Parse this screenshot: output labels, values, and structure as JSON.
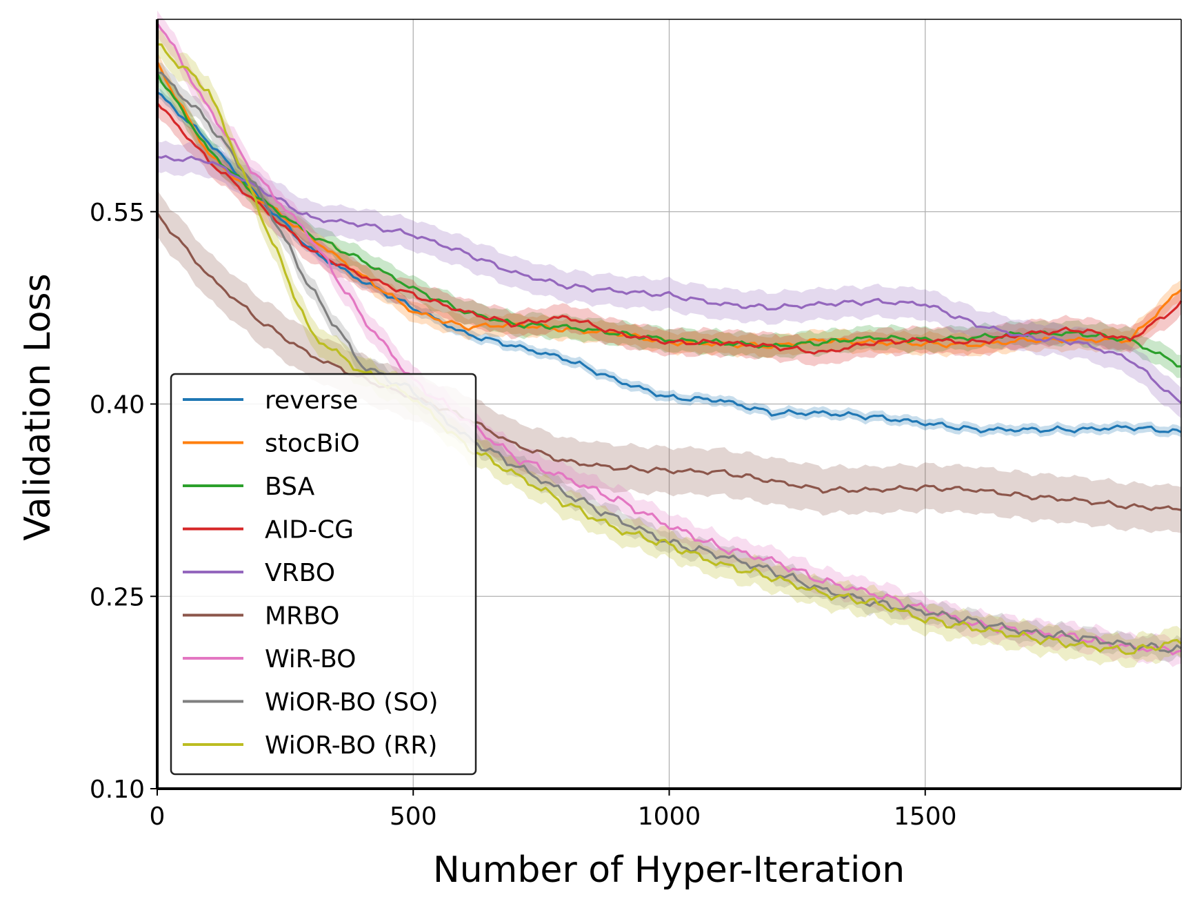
{
  "chart_data": {
    "type": "line",
    "title": "",
    "xlabel": "Number of Hyper-Iteration",
    "ylabel": "Validation Loss",
    "xlim": [
      0,
      2000
    ],
    "ylim": [
      0.1,
      0.7
    ],
    "xticks": [
      0,
      500,
      1000,
      1500
    ],
    "xtick_labels": [
      "0",
      "500",
      "1000",
      "1500"
    ],
    "yticks": [
      0.1,
      0.25,
      0.4,
      0.55
    ],
    "ytick_labels": [
      "0.10",
      "0.25",
      "0.40",
      "0.55"
    ],
    "grid": true,
    "legend_position": "lower-left",
    "x": [
      0,
      100,
      200,
      300,
      400,
      500,
      600,
      700,
      800,
      900,
      1000,
      1100,
      1200,
      1300,
      1400,
      1500,
      1600,
      1700,
      1800,
      1900,
      2000
    ],
    "series": [
      {
        "name": "reverse",
        "color": "#1f77b4",
        "band": 0.004,
        "values": [
          0.643,
          0.605,
          0.56,
          0.52,
          0.496,
          0.475,
          0.455,
          0.445,
          0.435,
          0.418,
          0.405,
          0.403,
          0.393,
          0.393,
          0.39,
          0.385,
          0.38,
          0.38,
          0.38,
          0.382,
          0.378
        ]
      },
      {
        "name": "stocBiO",
        "color": "#ff7f0e",
        "band": 0.008,
        "values": [
          0.665,
          0.595,
          0.56,
          0.53,
          0.5,
          0.472,
          0.46,
          0.462,
          0.458,
          0.455,
          0.448,
          0.447,
          0.445,
          0.45,
          0.448,
          0.447,
          0.446,
          0.45,
          0.45,
          0.45,
          0.49
        ]
      },
      {
        "name": "BSA",
        "color": "#2ca02c",
        "band": 0.009,
        "values": [
          0.658,
          0.598,
          0.56,
          0.532,
          0.512,
          0.49,
          0.472,
          0.462,
          0.46,
          0.455,
          0.45,
          0.448,
          0.445,
          0.448,
          0.452,
          0.45,
          0.452,
          0.455,
          0.455,
          0.45,
          0.43
        ]
      },
      {
        "name": "AID-CG",
        "color": "#d62728",
        "band": 0.01,
        "values": [
          0.635,
          0.59,
          0.555,
          0.52,
          0.5,
          0.485,
          0.472,
          0.462,
          0.468,
          0.455,
          0.448,
          0.448,
          0.445,
          0.44,
          0.448,
          0.45,
          0.448,
          0.455,
          0.458,
          0.45,
          0.478
        ]
      },
      {
        "name": "VRBO",
        "color": "#9467bd",
        "band": 0.012,
        "values": [
          0.592,
          0.59,
          0.568,
          0.545,
          0.54,
          0.532,
          0.518,
          0.502,
          0.492,
          0.488,
          0.485,
          0.478,
          0.475,
          0.478,
          0.48,
          0.478,
          0.462,
          0.452,
          0.448,
          0.435,
          0.4
        ]
      },
      {
        "name": "MRBO",
        "color": "#8c564b",
        "band": 0.018,
        "values": [
          0.548,
          0.5,
          0.465,
          0.438,
          0.42,
          0.405,
          0.39,
          0.368,
          0.355,
          0.35,
          0.348,
          0.347,
          0.34,
          0.333,
          0.333,
          0.335,
          0.333,
          0.328,
          0.325,
          0.32,
          0.318
        ]
      },
      {
        "name": "WiR-BO",
        "color": "#e377c2",
        "band": 0.01,
        "values": [
          0.7,
          0.63,
          0.575,
          0.53,
          0.468,
          0.418,
          0.388,
          0.358,
          0.342,
          0.325,
          0.305,
          0.288,
          0.278,
          0.262,
          0.252,
          0.24,
          0.228,
          0.222,
          0.218,
          0.21,
          0.208
        ]
      },
      {
        "name": "WiOR-BO (SO)",
        "color": "#7f7f7f",
        "band": 0.008,
        "values": [
          0.66,
          0.62,
          0.565,
          0.49,
          0.43,
          0.41,
          0.375,
          0.352,
          0.33,
          0.31,
          0.292,
          0.282,
          0.27,
          0.255,
          0.245,
          0.238,
          0.23,
          0.222,
          0.218,
          0.212,
          0.208
        ]
      },
      {
        "name": "WiOR-BO (RR)",
        "color": "#bcbd22",
        "band": 0.011,
        "values": [
          0.68,
          0.645,
          0.55,
          0.455,
          0.425,
          0.405,
          0.368,
          0.345,
          0.322,
          0.302,
          0.29,
          0.275,
          0.265,
          0.252,
          0.245,
          0.232,
          0.225,
          0.218,
          0.212,
          0.207,
          0.215
        ]
      }
    ]
  }
}
